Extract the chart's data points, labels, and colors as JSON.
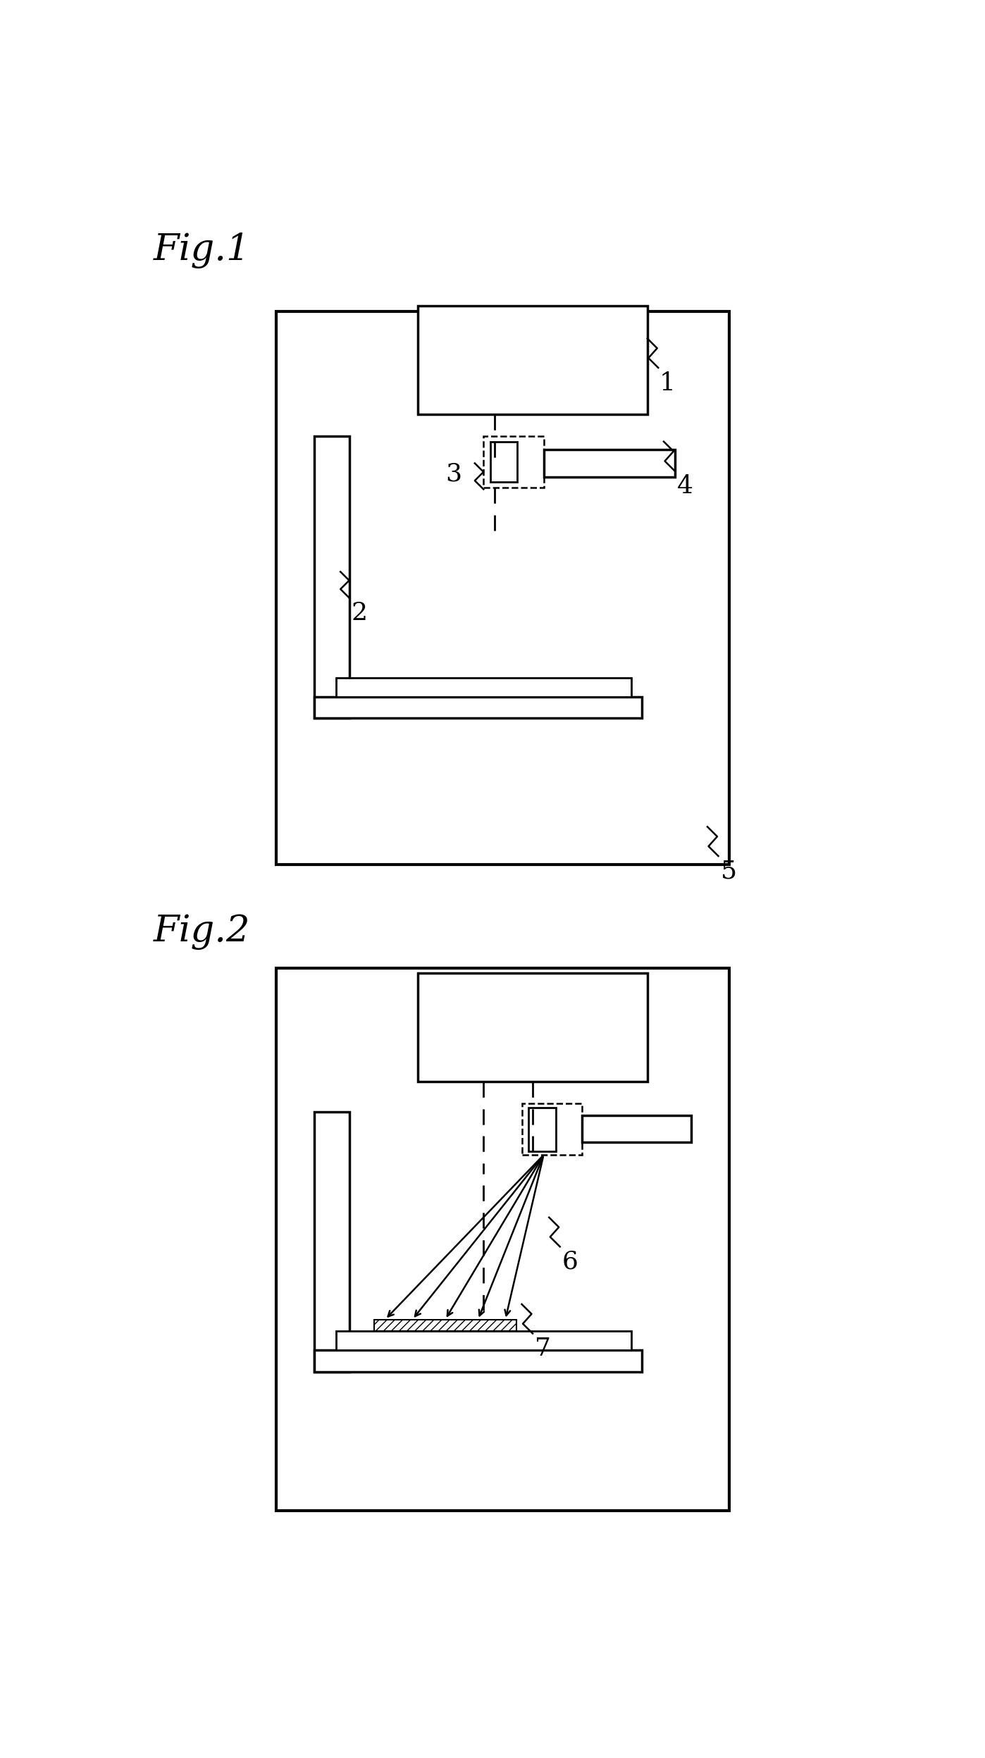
{
  "fig_width": 13.98,
  "fig_height": 24.95,
  "bg_color": "#ffffff",
  "line_color": "#000000",
  "fig1_label": "Fig.1",
  "fig2_label": "Fig.2"
}
